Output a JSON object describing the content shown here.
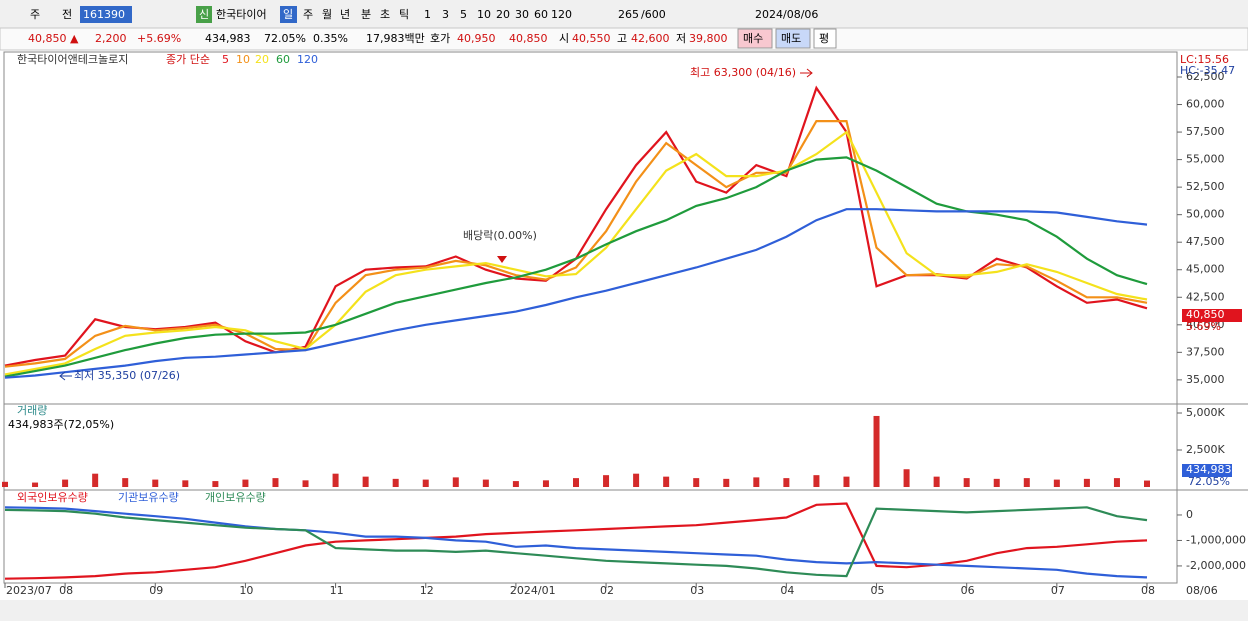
{
  "toolbar": [
    "주",
    "전",
    "161390",
    "신",
    "한국타이어",
    "일",
    "주",
    "월",
    "년",
    "분",
    "초",
    "틱",
    "1",
    "3",
    "5",
    "10",
    "20",
    "30",
    "60",
    "120",
    "265",
    "/600",
    "2024/08/06"
  ],
  "quote": [
    "40,850 ▲",
    "2,200",
    "+5.69%",
    "434,983",
    "72.05%",
    "0.35%",
    "17,983백만",
    "호가",
    "40,950",
    "40,850",
    "시",
    "40,550",
    "고",
    "42,600",
    "저",
    "39,800",
    "매수",
    "매도",
    "평"
  ],
  "chart_data": [
    {
      "type": "line",
      "title": "한국타이어앤테크놀로지",
      "legend_title": "종가 단순",
      "categories": [
        "2023/07",
        null,
        "08",
        null,
        null,
        "09",
        null,
        null,
        "10",
        null,
        null,
        "11",
        null,
        null,
        "12",
        null,
        null,
        "2024/01",
        null,
        null,
        "02",
        null,
        null,
        "03",
        null,
        null,
        "04",
        null,
        null,
        "05",
        null,
        null,
        "06",
        null,
        null,
        "07",
        null,
        null,
        "08"
      ],
      "end_label": "08/06",
      "ylim": [
        32900,
        64770
      ],
      "yticks": [
        {
          "value": 35000,
          "label": "35,000"
        },
        {
          "value": 37500,
          "label": "37,500"
        },
        {
          "value": 40000,
          "label": "40,000"
        },
        {
          "value": 42500,
          "label": "42,500"
        },
        {
          "value": 45000,
          "label": "45,000"
        },
        {
          "value": 47500,
          "label": "47,500"
        },
        {
          "value": 50000,
          "label": "50,000"
        },
        {
          "value": 52500,
          "label": "52,500"
        },
        {
          "value": 55000,
          "label": "55,000"
        },
        {
          "value": 57500,
          "label": "57,500"
        },
        {
          "value": 60000,
          "label": "60,000"
        },
        {
          "value": 62500,
          "label": "62,500"
        }
      ],
      "series": [
        {
          "name": "5",
          "color": "#e0141e",
          "values": [
            36300,
            36800,
            37200,
            40500,
            39800,
            39600,
            39800,
            40200,
            38500,
            37500,
            38000,
            43500,
            45000,
            45200,
            45300,
            46200,
            45000,
            44200,
            44000,
            46000,
            50500,
            54500,
            57500,
            53000,
            52000,
            54500,
            53500,
            61500,
            57500,
            43500,
            44500,
            44500,
            44200,
            46000,
            45200,
            43500,
            42000,
            42300,
            41500
          ]
        },
        {
          "name": "10",
          "color": "#f39018",
          "values": [
            36200,
            36500,
            36900,
            39000,
            39900,
            39500,
            39700,
            40000,
            39200,
            37800,
            37700,
            42000,
            44500,
            45000,
            45200,
            45800,
            45400,
            44500,
            44100,
            45200,
            48500,
            53000,
            56500,
            54500,
            52500,
            53800,
            53800,
            58500,
            58500,
            47000,
            44500,
            44600,
            44300,
            45500,
            45300,
            44000,
            42500,
            42500,
            42000
          ]
        },
        {
          "name": "20",
          "color": "#f4e21c",
          "values": [
            35500,
            36000,
            36500,
            37800,
            39000,
            39300,
            39500,
            39800,
            39500,
            38500,
            37800,
            40000,
            43000,
            44500,
            45000,
            45300,
            45600,
            45000,
            44400,
            44600,
            47000,
            50500,
            54000,
            55500,
            53500,
            53500,
            54000,
            55500,
            57500,
            52000,
            46500,
            44500,
            44500,
            44800,
            45500,
            44800,
            43800,
            42800,
            42300
          ]
        },
        {
          "name": "60",
          "color": "#1f9b3c",
          "values": [
            35300,
            35800,
            36300,
            37000,
            37700,
            38300,
            38800,
            39100,
            39200,
            39200,
            39300,
            40000,
            41000,
            42000,
            42600,
            43200,
            43800,
            44300,
            45000,
            46000,
            47300,
            48500,
            49500,
            50800,
            51500,
            52500,
            54000,
            55000,
            55200,
            54000,
            52500,
            51000,
            50300,
            50000,
            49500,
            48000,
            46000,
            44500,
            43700
          ]
        },
        {
          "name": "120",
          "color": "#2f5fd8",
          "values": [
            35200,
            35400,
            35700,
            36000,
            36300,
            36700,
            37000,
            37100,
            37300,
            37500,
            37700,
            38300,
            38900,
            39500,
            40000,
            40400,
            40800,
            41200,
            41800,
            42500,
            43100,
            43800,
            44500,
            45200,
            46000,
            46800,
            48000,
            49500,
            50500,
            50500,
            50400,
            50300,
            50300,
            50300,
            50300,
            50200,
            49800,
            49400,
            49100
          ]
        }
      ],
      "annotations": [
        "최고 63,300 (04/16)",
        "최저 35,350 (07/26)",
        "배당락(0.00%)"
      ],
      "indicators": [
        "LC:15.56",
        "HC:-35.47"
      ],
      "last_label": "40,850",
      "last_change": "5.69%"
    },
    {
      "type": "bar",
      "title": "거래량",
      "subtitle": "434,983주(72,05%)",
      "color": "#d42a2a",
      "ylim": [
        0,
        5540
      ],
      "yticks": [
        {
          "value": 2500,
          "label": "2,500K"
        },
        {
          "value": 5000,
          "label": "5,000K"
        }
      ],
      "values": [
        350,
        300,
        500,
        900,
        600,
        500,
        450,
        400,
        500,
        600,
        450,
        900,
        700,
        550,
        500,
        650,
        500,
        400,
        450,
        600,
        800,
        900,
        700,
        600,
        550,
        650,
        600,
        800,
        700,
        4800,
        1200,
        700,
        600,
        550,
        600,
        500,
        550,
        600,
        435
      ],
      "last_label": "434,983",
      "last_change": "72.05%"
    },
    {
      "type": "line",
      "ylim": [
        -2670000,
        980000
      ],
      "yticks": [
        0,
        {
          "value": -1000000,
          "label": "-1,000,000"
        },
        {
          "value": -2000000,
          "label": "-2,000,000"
        }
      ],
      "series": [
        {
          "name": "외국인보유수량",
          "color": "#e0141e",
          "values": [
            -2500000,
            -2480000,
            -2450000,
            -2400000,
            -2300000,
            -2250000,
            -2150000,
            -2050000,
            -1800000,
            -1500000,
            -1200000,
            -1050000,
            -1000000,
            -950000,
            -900000,
            -850000,
            -750000,
            -700000,
            -650000,
            -600000,
            -550000,
            -500000,
            -450000,
            -400000,
            -300000,
            -200000,
            -100000,
            400000,
            450000,
            -2000000,
            -2050000,
            -1950000,
            -1800000,
            -1500000,
            -1300000,
            -1250000,
            -1150000,
            -1050000,
            -1000000
          ]
        },
        {
          "name": "기관보유수량",
          "color": "#2f5fd8",
          "values": [
            300000,
            280000,
            250000,
            150000,
            50000,
            -50000,
            -150000,
            -300000,
            -450000,
            -550000,
            -600000,
            -700000,
            -850000,
            -850000,
            -900000,
            -1000000,
            -1050000,
            -1250000,
            -1200000,
            -1300000,
            -1350000,
            -1400000,
            -1450000,
            -1500000,
            -1550000,
            -1600000,
            -1750000,
            -1850000,
            -1900000,
            -1850000,
            -1900000,
            -1950000,
            -2000000,
            -2050000,
            -2100000,
            -2150000,
            -2300000,
            -2400000,
            -2450000
          ]
        },
        {
          "name": "개인보유수량",
          "color": "#2e8b57",
          "values": [
            200000,
            180000,
            150000,
            50000,
            -100000,
            -200000,
            -300000,
            -400000,
            -500000,
            -550000,
            -600000,
            -1300000,
            -1350000,
            -1400000,
            -1400000,
            -1450000,
            -1400000,
            -1500000,
            -1600000,
            -1700000,
            -1800000,
            -1850000,
            -1900000,
            -1950000,
            -2000000,
            -2100000,
            -2250000,
            -2350000,
            -2400000,
            250000,
            200000,
            150000,
            100000,
            150000,
            200000,
            250000,
            300000,
            -50000,
            -200000
          ]
        }
      ]
    }
  ]
}
